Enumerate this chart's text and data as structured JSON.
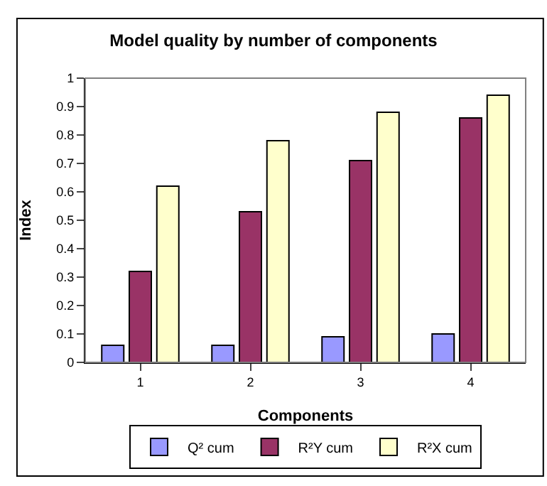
{
  "chart_data": {
    "type": "bar",
    "title": "Model quality by number of components",
    "xlabel": "Components",
    "ylabel": "Index",
    "categories": [
      "1",
      "2",
      "3",
      "4"
    ],
    "series": [
      {
        "name": "Q² cum",
        "color": "#9999ff",
        "values": [
          0.06,
          0.06,
          0.09,
          0.1
        ]
      },
      {
        "name": "R²Y cum",
        "color": "#993366",
        "values": [
          0.32,
          0.53,
          0.71,
          0.86
        ]
      },
      {
        "name": "R²X cum",
        "color": "#ffffcc",
        "values": [
          0.62,
          0.78,
          0.88,
          0.94
        ]
      }
    ],
    "ylim": [
      0,
      1
    ],
    "yticks": [
      0,
      0.1,
      0.2,
      0.3,
      0.4,
      0.5,
      0.6,
      0.7,
      0.8,
      0.9,
      1
    ],
    "legend": "bottom"
  }
}
